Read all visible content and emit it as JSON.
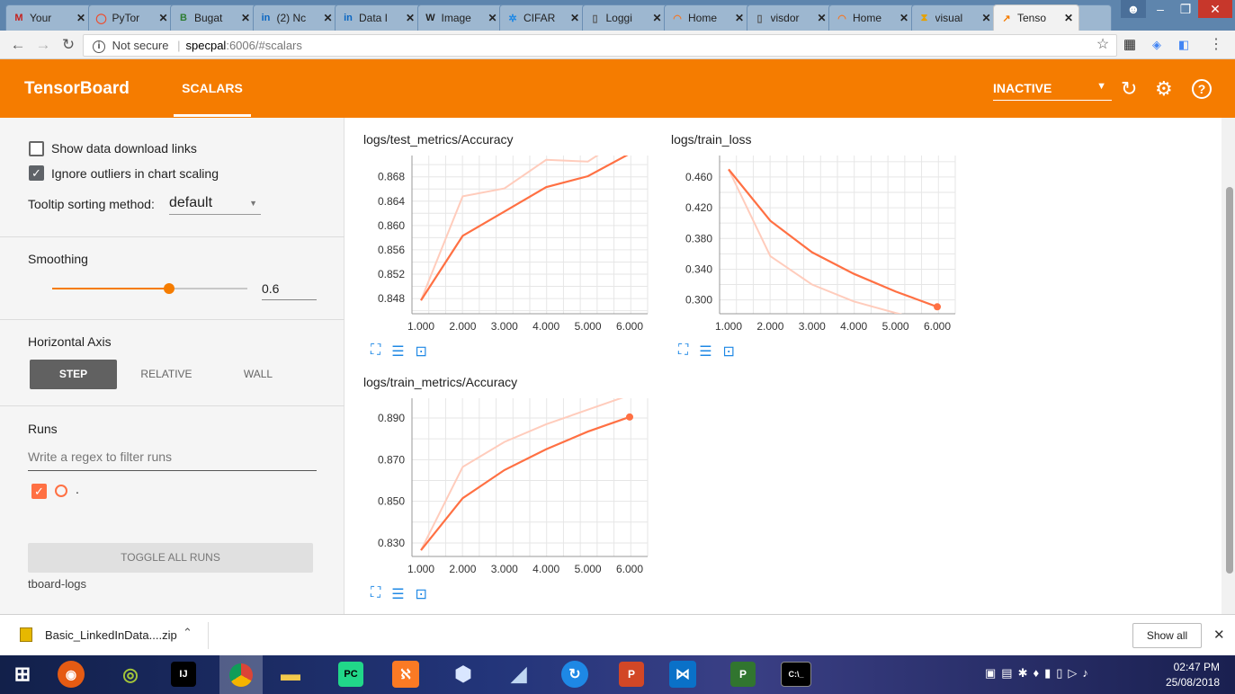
{
  "browser": {
    "tabs": [
      {
        "title": "Your",
        "icon": "gmail-icon",
        "color": "#c5221f",
        "glyph": "M"
      },
      {
        "title": "PyTor",
        "icon": "pytorch-icon",
        "color": "#ee4c2c",
        "glyph": "◯"
      },
      {
        "title": "Bugat",
        "icon": "bugatti-icon",
        "color": "#2e7d32",
        "glyph": "B"
      },
      {
        "title": "(2) Nc",
        "icon": "linkedin-icon",
        "color": "#0a66c2",
        "glyph": "in"
      },
      {
        "title": "Data I",
        "icon": "linkedin-icon",
        "color": "#0a66c2",
        "glyph": "in"
      },
      {
        "title": "Image",
        "icon": "wikipedia-icon",
        "color": "#222222",
        "glyph": "W"
      },
      {
        "title": "CIFAR",
        "icon": "snowflake-icon",
        "color": "#1e88e5",
        "glyph": "✲"
      },
      {
        "title": "Loggi",
        "icon": "page-icon",
        "color": "#555555",
        "glyph": "▯"
      },
      {
        "title": "Home",
        "icon": "jupyter-icon",
        "color": "#f37726",
        "glyph": "◠"
      },
      {
        "title": "visdor",
        "icon": "page-icon",
        "color": "#555555",
        "glyph": "▯"
      },
      {
        "title": "Home",
        "icon": "jupyter-icon",
        "color": "#f37726",
        "glyph": "◠"
      },
      {
        "title": "visual",
        "icon": "hourglass-icon",
        "color": "#e6a100",
        "glyph": "⧗"
      },
      {
        "title": "Tenso",
        "icon": "tensorboard-icon",
        "color": "#f57c00",
        "glyph": "↗"
      }
    ],
    "url_prefix": "Not secure",
    "url_host": "specpal",
    "url_rest": ":6006/#scalars"
  },
  "header": {
    "brand": "TensorBoard",
    "tab_scalars": "SCALARS",
    "status": "INACTIVE"
  },
  "sidebar": {
    "show_download_links": "Show data download links",
    "ignore_outliers": "Ignore outliers in chart scaling",
    "tooltip_label": "Tooltip sorting method:",
    "tooltip_value": "default",
    "smoothing_label": "Smoothing",
    "smoothing_value": "0.6",
    "smoothing_fraction": 0.6,
    "haxis_label": "Horizontal Axis",
    "haxis_step": "STEP",
    "haxis_relative": "RELATIVE",
    "haxis_wall": "WALL",
    "runs_label": "Runs",
    "runs_placeholder": "Write a regex to filter runs",
    "run_name": ".",
    "toggle_all": "TOGGLE ALL RUNS",
    "logdir": "tboard-logs"
  },
  "chart_data": [
    {
      "type": "line",
      "title": "logs/test_metrics/Accuracy",
      "x": [
        1,
        2,
        3,
        4,
        5,
        6
      ],
      "xticks": [
        "1.000",
        "2.000",
        "3.000",
        "4.000",
        "5.000",
        "6.000"
      ],
      "yticks": [
        "0.848",
        "0.852",
        "0.856",
        "0.860",
        "0.864",
        "0.868"
      ],
      "ylim": [
        0.8455,
        0.8715
      ],
      "series": [
        {
          "values": [
            0.8477,
            0.8583,
            0.8623,
            0.8663,
            0.8681,
            0.8718
          ],
          "role": "smoothed"
        },
        {
          "values": [
            0.8477,
            0.8648,
            0.8661,
            0.8708,
            0.8705,
            0.875
          ],
          "role": "raw"
        }
      ]
    },
    {
      "type": "line",
      "title": "logs/train_loss",
      "x": [
        1,
        2,
        3,
        4,
        5,
        6
      ],
      "xticks": [
        "1.000",
        "2.000",
        "3.000",
        "4.000",
        "5.000",
        "6.000"
      ],
      "yticks": [
        "0.300",
        "0.340",
        "0.380",
        "0.420",
        "0.460"
      ],
      "ylim": [
        0.282,
        0.488
      ],
      "series": [
        {
          "values": [
            0.47,
            0.403,
            0.362,
            0.334,
            0.311,
            0.291
          ],
          "role": "smoothed"
        },
        {
          "values": [
            0.47,
            0.357,
            0.32,
            0.298,
            0.283,
            0.27
          ],
          "role": "raw"
        }
      ]
    },
    {
      "type": "line",
      "title": "logs/train_metrics/Accuracy",
      "x": [
        1,
        2,
        3,
        4,
        5,
        6
      ],
      "xticks": [
        "1.000",
        "2.000",
        "3.000",
        "4.000",
        "5.000",
        "6.000"
      ],
      "yticks": [
        "0.830",
        "0.850",
        "0.870",
        "0.890"
      ],
      "ylim": [
        0.8235,
        0.8995
      ],
      "series": [
        {
          "values": [
            0.8265,
            0.8515,
            0.865,
            0.875,
            0.8835,
            0.8905
          ],
          "role": "smoothed"
        },
        {
          "values": [
            0.8265,
            0.8665,
            0.8785,
            0.887,
            0.894,
            0.901
          ],
          "role": "raw"
        }
      ]
    }
  ],
  "colors": {
    "accent": "#f57c00",
    "run": "#ff7043",
    "run_light": "#ffccbc"
  },
  "download": {
    "file": "Basic_LinkedInData....zip",
    "show_all": "Show all"
  },
  "taskbar": {
    "time": "02:47 PM",
    "date": "25/08/2018"
  }
}
